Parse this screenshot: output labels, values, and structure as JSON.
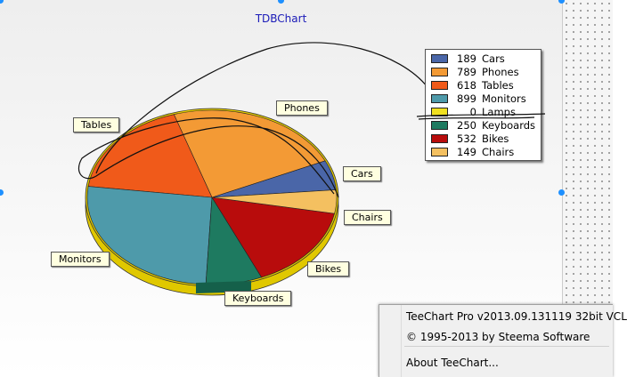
{
  "chart": {
    "title": "TDBChart"
  },
  "chart_data": {
    "type": "pie",
    "title": "",
    "series": [
      {
        "name": "Cars",
        "value": 189,
        "color": "#4a66a8"
      },
      {
        "name": "Phones",
        "value": 789,
        "color": "#f39a35"
      },
      {
        "name": "Tables",
        "value": 618,
        "color": "#f05a1a"
      },
      {
        "name": "Monitors",
        "value": 899,
        "color": "#4e9aaa"
      },
      {
        "name": "Lamps",
        "value": 0,
        "color": "#f0e020"
      },
      {
        "name": "Keyboards",
        "value": 250,
        "color": "#1e7a60"
      },
      {
        "name": "Bikes",
        "value": 532,
        "color": "#b80c0c"
      },
      {
        "name": "Chairs",
        "value": 149,
        "color": "#f4c060"
      }
    ],
    "legend_position": "top-right",
    "rim_color": "#e0c800"
  },
  "legend": {
    "items": [
      {
        "value": "189",
        "label": "Cars",
        "color": "#4a66a8"
      },
      {
        "value": "789",
        "label": "Phones",
        "color": "#f39a35"
      },
      {
        "value": "618",
        "label": "Tables",
        "color": "#f05a1a"
      },
      {
        "value": "899",
        "label": "Monitors",
        "color": "#4e9aaa"
      },
      {
        "value": "0",
        "label": "Lamps",
        "color": "#f0e020"
      },
      {
        "value": "250",
        "label": "Keyboards",
        "color": "#1e7a60"
      },
      {
        "value": "532",
        "label": "Bikes",
        "color": "#b80c0c"
      },
      {
        "value": "149",
        "label": "Chairs",
        "color": "#f4c060"
      }
    ]
  },
  "labels": {
    "cars": "Cars",
    "phones": "Phones",
    "tables": "Tables",
    "monitors": "Monitors",
    "keyboards": "Keyboards",
    "bikes": "Bikes",
    "chairs": "Chairs"
  },
  "context_menu": {
    "version": "TeeChart Pro v2013.09.131119 32bit VCL",
    "copyright": "© 1995-2013 by Steema Software",
    "about": "About TeeChart..."
  }
}
